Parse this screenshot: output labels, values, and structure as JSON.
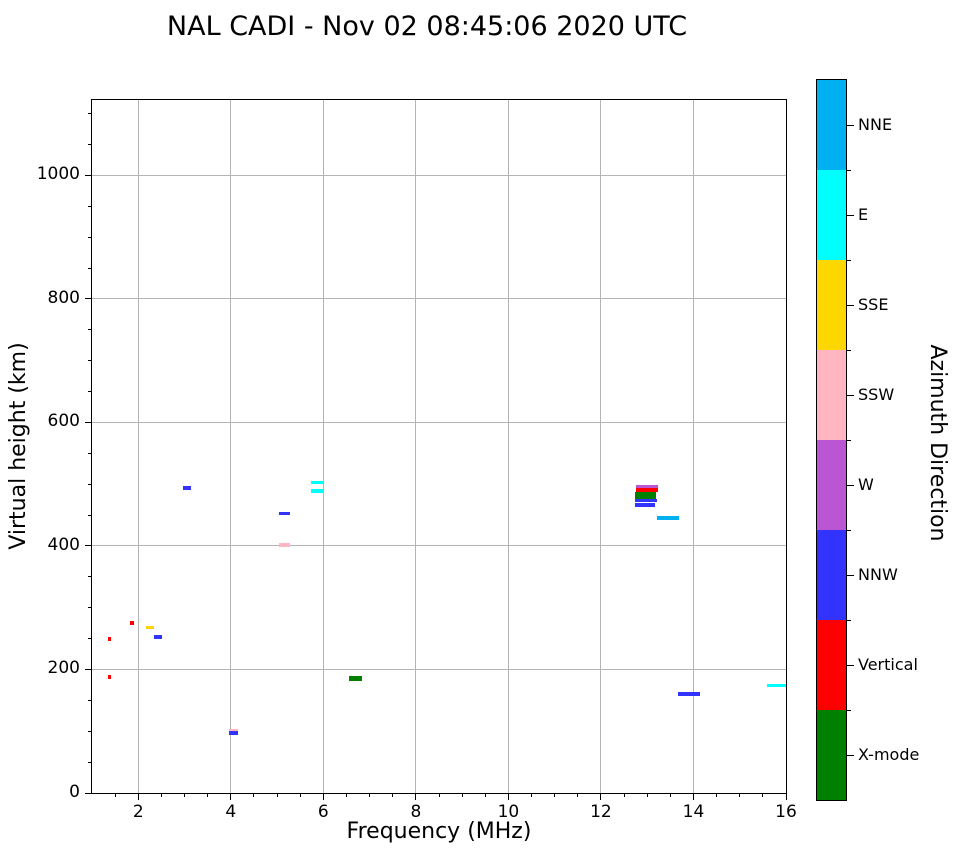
{
  "chart_data": {
    "type": "scatter",
    "title": "NAL CADI - Nov 02 08:45:06 2020 UTC",
    "xlabel": "Frequency (MHz)",
    "ylabel": "Virtual height (km)",
    "legend_title": "Azimuth Direction",
    "xlim": [
      1,
      16
    ],
    "ylim": [
      0,
      1122
    ],
    "xticks": [
      2,
      4,
      6,
      8,
      10,
      12,
      14,
      16
    ],
    "yticks": [
      0,
      200,
      400,
      600,
      800,
      1000
    ],
    "x_minor_step": 0.5,
    "y_minor_step": 50,
    "grid": true,
    "grid_color": "#b4b4b4",
    "legend_position": "right-colorbar",
    "categories": [
      {
        "label": "NNE",
        "color": "#00b0f0"
      },
      {
        "label": "E",
        "color": "#00ffff"
      },
      {
        "label": "SSE",
        "color": "#ffd700"
      },
      {
        "label": "SSW",
        "color": "#ffb6c1"
      },
      {
        "label": "W",
        "color": "#ba55d3"
      },
      {
        "label": "NNW",
        "color": "#3333ff"
      },
      {
        "label": "Vertical",
        "color": "#ff0000"
      },
      {
        "label": "X-mode",
        "color": "#008000"
      }
    ],
    "points": [
      {
        "freq_mhz": 1.38,
        "height_km": 188,
        "direction": "Vertical",
        "width_mhz": 0.08,
        "thickness_px": 4
      },
      {
        "freq_mhz": 1.38,
        "height_km": 249,
        "direction": "Vertical",
        "width_mhz": 0.08,
        "thickness_px": 4
      },
      {
        "freq_mhz": 1.87,
        "height_km": 275,
        "direction": "Vertical",
        "width_mhz": 0.08,
        "thickness_px": 4
      },
      {
        "freq_mhz": 2.26,
        "height_km": 268,
        "direction": "SSE",
        "width_mhz": 0.18,
        "thickness_px": 3
      },
      {
        "freq_mhz": 2.43,
        "height_km": 253,
        "direction": "NNW",
        "width_mhz": 0.18,
        "thickness_px": 4
      },
      {
        "freq_mhz": 3.05,
        "height_km": 494,
        "direction": "NNW",
        "width_mhz": 0.18,
        "thickness_px": 4
      },
      {
        "freq_mhz": 4.06,
        "height_km": 101,
        "direction": "SSW",
        "width_mhz": 0.2,
        "thickness_px": 3
      },
      {
        "freq_mhz": 4.06,
        "height_km": 97,
        "direction": "NNW",
        "width_mhz": 0.2,
        "thickness_px": 4
      },
      {
        "freq_mhz": 5.16,
        "height_km": 453,
        "direction": "NNW",
        "width_mhz": 0.22,
        "thickness_px": 3
      },
      {
        "freq_mhz": 5.16,
        "height_km": 402,
        "direction": "SSW",
        "width_mhz": 0.24,
        "thickness_px": 4
      },
      {
        "freq_mhz": 5.87,
        "height_km": 503,
        "direction": "E",
        "width_mhz": 0.26,
        "thickness_px": 3
      },
      {
        "freq_mhz": 5.86,
        "height_km": 489,
        "direction": "E",
        "width_mhz": 0.26,
        "thickness_px": 4
      },
      {
        "freq_mhz": 6.69,
        "height_km": 186,
        "direction": "X-mode",
        "width_mhz": 0.28,
        "thickness_px": 5
      },
      {
        "freq_mhz": 12.99,
        "height_km": 497,
        "direction": "W",
        "width_mhz": 0.48,
        "thickness_px": 3
      },
      {
        "freq_mhz": 12.99,
        "height_km": 490,
        "direction": "Vertical",
        "width_mhz": 0.48,
        "thickness_px": 4
      },
      {
        "freq_mhz": 12.97,
        "height_km": 481,
        "direction": "X-mode",
        "width_mhz": 0.46,
        "thickness_px": 8
      },
      {
        "freq_mhz": 12.98,
        "height_km": 473,
        "direction": "NNW",
        "width_mhz": 0.48,
        "thickness_px": 3
      },
      {
        "freq_mhz": 12.95,
        "height_km": 466,
        "direction": "NNW",
        "width_mhz": 0.44,
        "thickness_px": 4
      },
      {
        "freq_mhz": 13.45,
        "height_km": 446,
        "direction": "NNE",
        "width_mhz": 0.46,
        "thickness_px": 4
      },
      {
        "freq_mhz": 13.9,
        "height_km": 160,
        "direction": "NNW",
        "width_mhz": 0.48,
        "thickness_px": 4
      },
      {
        "freq_mhz": 15.8,
        "height_km": 174,
        "direction": "E",
        "width_mhz": 0.4,
        "thickness_px": 3
      }
    ]
  }
}
